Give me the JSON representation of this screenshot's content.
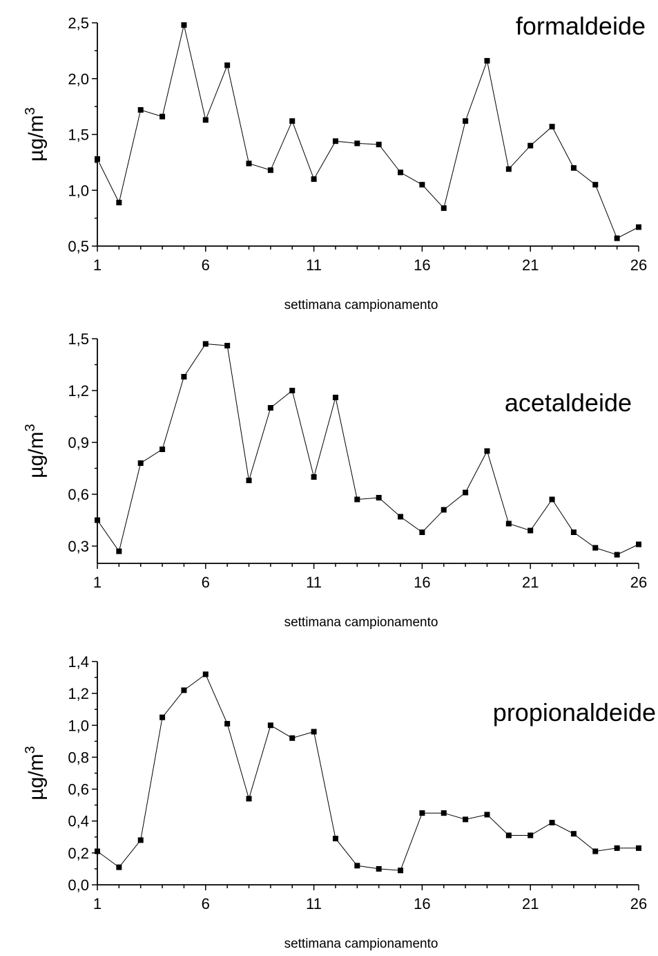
{
  "chart_data": [
    {
      "type": "line",
      "title": "formaldeide",
      "xlabel": "settimana campionamento",
      "ylabel": "µg/m",
      "ylabel_superscript": "3",
      "xlim": [
        1,
        26
      ],
      "ylim": [
        0.5,
        2.5
      ],
      "x_ticks": [
        1,
        6,
        11,
        16,
        21,
        26
      ],
      "x_tick_labels": [
        "1",
        "6",
        "11",
        "16",
        "21",
        "26"
      ],
      "y_ticks": [
        0.5,
        1.0,
        1.5,
        2.0,
        2.5
      ],
      "y_tick_labels": [
        "0,5",
        "1,0",
        "1,5",
        "2,0",
        "2,5"
      ],
      "marker": "square",
      "grid": false,
      "x": [
        1,
        2,
        3,
        4,
        5,
        6,
        7,
        8,
        9,
        10,
        11,
        12,
        13,
        14,
        15,
        16,
        17,
        18,
        19,
        20,
        21,
        22,
        23,
        24,
        25,
        26
      ],
      "values": [
        1.28,
        0.89,
        1.72,
        1.66,
        2.48,
        1.63,
        2.12,
        1.24,
        1.18,
        1.62,
        1.1,
        1.44,
        1.42,
        1.41,
        1.16,
        1.05,
        0.84,
        1.62,
        2.16,
        1.19,
        1.4,
        1.57,
        1.2,
        1.05,
        0.57,
        0.67
      ]
    },
    {
      "type": "line",
      "title": "acetaldeide",
      "xlabel": "settimana campionamento",
      "ylabel": "µg/m",
      "ylabel_superscript": "3",
      "xlim": [
        1,
        26
      ],
      "ylim": [
        0.2,
        1.5
      ],
      "x_ticks": [
        1,
        6,
        11,
        16,
        21,
        26
      ],
      "x_tick_labels": [
        "1",
        "6",
        "11",
        "16",
        "21",
        "26"
      ],
      "y_ticks": [
        0.3,
        0.6,
        0.9,
        1.2,
        1.5
      ],
      "y_tick_labels": [
        "0,3",
        "0,6",
        "0,9",
        "1,2",
        "1,5"
      ],
      "marker": "square",
      "grid": false,
      "x": [
        1,
        2,
        3,
        4,
        5,
        6,
        7,
        8,
        9,
        10,
        11,
        12,
        13,
        14,
        15,
        16,
        17,
        18,
        19,
        20,
        21,
        22,
        23,
        24,
        25,
        26
      ],
      "values": [
        0.45,
        0.27,
        0.78,
        0.86,
        1.28,
        1.47,
        1.46,
        0.68,
        1.1,
        1.2,
        0.7,
        1.16,
        0.57,
        0.58,
        0.47,
        0.38,
        0.51,
        0.61,
        0.85,
        0.43,
        0.39,
        0.57,
        0.38,
        0.29,
        0.25,
        0.31
      ]
    },
    {
      "type": "line",
      "title": "propionaldeide",
      "xlabel": "settimana campionamento",
      "ylabel": "µg/m",
      "ylabel_superscript": "3",
      "xlim": [
        1,
        26
      ],
      "ylim": [
        0.0,
        1.4
      ],
      "x_ticks": [
        1,
        6,
        11,
        16,
        21,
        26
      ],
      "x_tick_labels": [
        "1",
        "6",
        "11",
        "16",
        "21",
        "26"
      ],
      "y_ticks": [
        0.0,
        0.2,
        0.4,
        0.6,
        0.8,
        1.0,
        1.2,
        1.4
      ],
      "y_tick_labels": [
        "0,0",
        "0,2",
        "0,4",
        "0,6",
        "0,8",
        "1,0",
        "1,2",
        "1,4"
      ],
      "marker": "square",
      "grid": false,
      "x": [
        1,
        2,
        3,
        4,
        5,
        6,
        7,
        8,
        9,
        10,
        11,
        12,
        13,
        14,
        15,
        16,
        17,
        18,
        19,
        20,
        21,
        22,
        23,
        24,
        25,
        26
      ],
      "values": [
        0.21,
        0.11,
        0.28,
        1.05,
        1.22,
        1.32,
        1.01,
        0.54,
        1.0,
        0.92,
        0.96,
        0.29,
        0.12,
        0.1,
        0.09,
        0.45,
        0.45,
        0.41,
        0.44,
        0.31,
        0.31,
        0.39,
        0.32,
        0.21,
        0.23,
        0.23
      ]
    }
  ]
}
